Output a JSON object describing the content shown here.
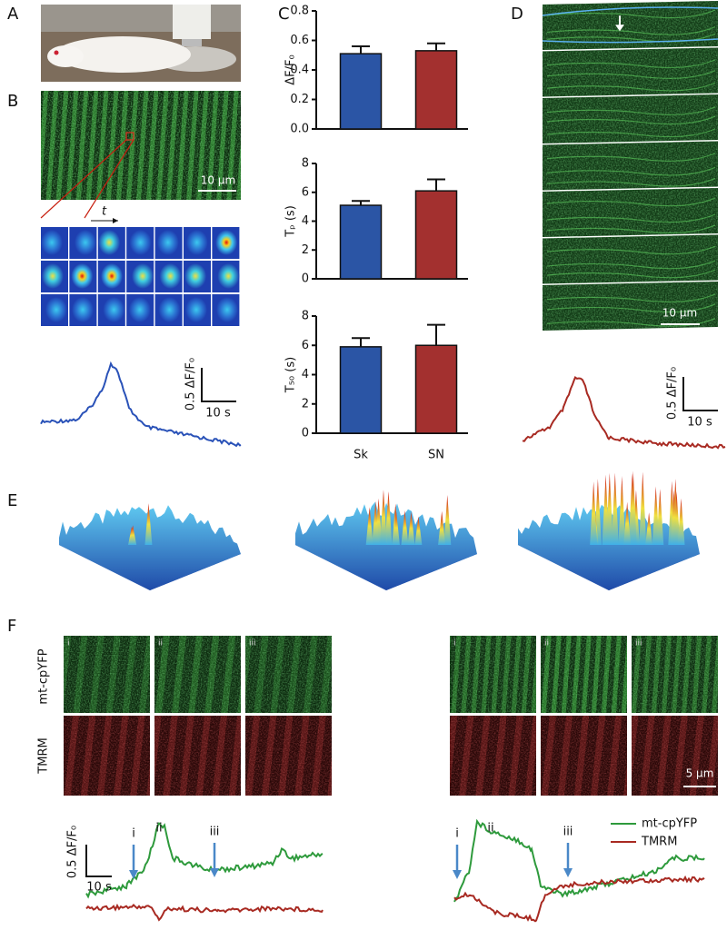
{
  "panel_labels": [
    "A",
    "B",
    "C",
    "D",
    "E",
    "F"
  ],
  "panel_b": {
    "scale_bar": "10 μm",
    "time_label": "t",
    "trace_scale_y": "0.5 ΔF/F₀",
    "trace_scale_x": "10 s"
  },
  "chart_data": [
    {
      "type": "bar",
      "ylabel": "ΔF/F₀",
      "categories": [
        null,
        null
      ],
      "values": [
        0.51,
        0.53
      ],
      "errors": [
        0.05,
        0.05
      ],
      "colors": [
        "#2b55a5",
        "#a3302f"
      ],
      "ylim": [
        0,
        0.8
      ],
      "yticks": [
        {
          "value": 0,
          "label": "0.0"
        },
        0.2,
        0.4,
        0.6,
        0.8
      ]
    },
    {
      "type": "bar",
      "ylabel": "Tₚ (s)",
      "categories": [
        null,
        null
      ],
      "values": [
        5.1,
        6.1
      ],
      "errors": [
        0.3,
        0.8
      ],
      "colors": [
        "#2b55a5",
        "#a3302f"
      ],
      "ylim": [
        0,
        8
      ],
      "yticks": [
        0,
        2,
        4,
        6,
        8
      ]
    },
    {
      "type": "bar",
      "ylabel": "T₅₀ (s)",
      "categories": [
        "Sk",
        "SN"
      ],
      "values": [
        5.9,
        6.0
      ],
      "errors": [
        0.6,
        1.4
      ],
      "colors": [
        "#2b55a5",
        "#a3302f"
      ],
      "ylim": [
        0,
        8
      ],
      "yticks": [
        0,
        2,
        4,
        6,
        8
      ]
    }
  ],
  "panel_d": {
    "scale_bar": "10 μm",
    "trace_scale_y": "0.5 ΔF/F₀",
    "trace_scale_x": "10 s"
  },
  "panel_f": {
    "channels": [
      "mt-cpYFP",
      "TMRM"
    ],
    "frames": [
      "i",
      "ii",
      "iii"
    ],
    "scale_bar": "5 μm",
    "trace_scale_y": "0.5 ΔF/F₀",
    "trace_scale_x": "10 s",
    "legend": [
      "mt-cpYFP",
      "TMRM"
    ]
  }
}
